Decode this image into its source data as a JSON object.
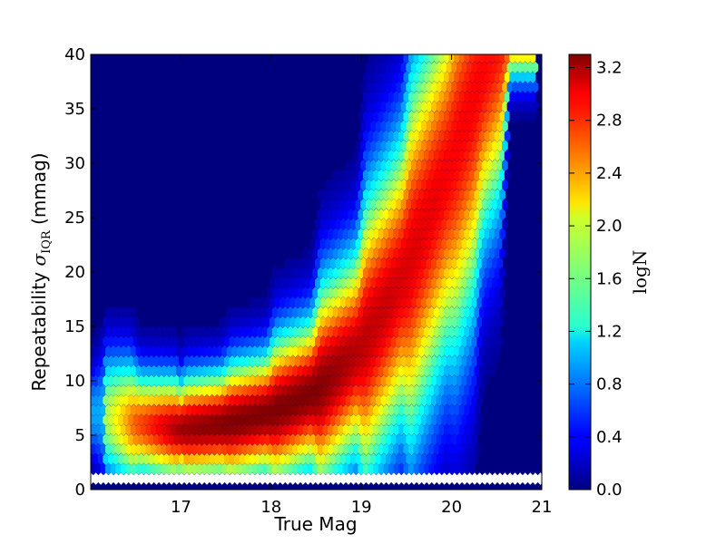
{
  "chart_data": {
    "type": "heatmap",
    "subtype": "hexbin",
    "xlabel": "True Mag",
    "ylabel_prefix": "Repeatability ",
    "ylabel_symbol": "σ",
    "ylabel_subscript": "IQR",
    "ylabel_suffix": " (mmag)",
    "xlim": [
      16.0,
      21.0
    ],
    "ylim": [
      0,
      40
    ],
    "x_ticks": [
      "17",
      "18",
      "19",
      "20",
      "21"
    ],
    "y_ticks": [
      "0",
      "5",
      "10",
      "15",
      "20",
      "25",
      "30",
      "35",
      "40"
    ],
    "colorbar": {
      "label": "logN",
      "range": [
        0.0,
        3.3
      ],
      "colormap": "jet",
      "ticks": [
        "0.0",
        "0.4",
        "0.8",
        "1.2",
        "1.6",
        "2.0",
        "2.4",
        "2.8",
        "3.2"
      ]
    },
    "background_value": 0.0,
    "floor_row": {
      "y": 1.0,
      "value": -1,
      "color": "#ffffff"
    },
    "ridge": {
      "comment": "density ridge center y vs x (data units), peak logN and width",
      "x": [
        16.1,
        16.5,
        17.0,
        17.5,
        18.0,
        18.5,
        19.0,
        19.5,
        20.0,
        20.3,
        20.6
      ],
      "y": [
        7.0,
        6.0,
        5.5,
        6.0,
        7.0,
        9.0,
        13.0,
        20.0,
        30.0,
        37.0,
        42.0
      ],
      "peak": [
        1.6,
        2.6,
        3.2,
        3.3,
        3.3,
        3.3,
        3.1,
        3.0,
        2.9,
        2.9,
        2.8
      ]
    }
  }
}
